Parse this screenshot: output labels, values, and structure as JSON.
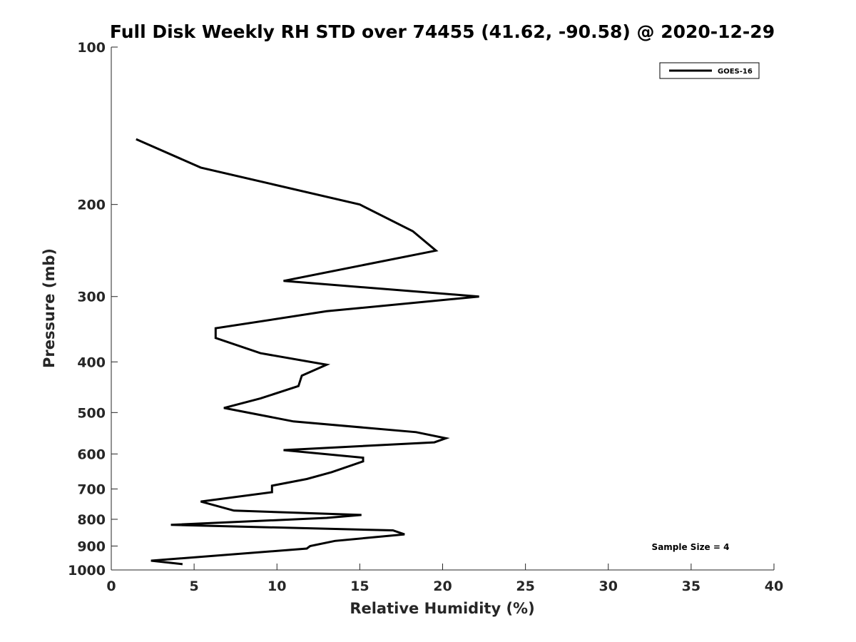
{
  "chart_data": {
    "type": "line",
    "title": "Full Disk Weekly RH STD over 74455 (41.62, -90.58) @ 2020-12-29",
    "xlabel": "Relative Humidity (%)",
    "ylabel": "Pressure (mb)",
    "xlim": [
      0,
      40
    ],
    "ylim": [
      100,
      1000
    ],
    "y_scale": "log",
    "y_reversed": true,
    "x_ticks": [
      "0",
      "5",
      "10",
      "15",
      "20",
      "25",
      "30",
      "35",
      "40"
    ],
    "y_ticks": [
      "100",
      "200",
      "300",
      "400",
      "500",
      "600",
      "700",
      "800",
      "900",
      "1000"
    ],
    "grid": false,
    "legend_position": "top-right",
    "annotation": "Sample Size = 4",
    "series": [
      {
        "name": "GOES-16",
        "color": "#000000",
        "points": [
          [
            1.5,
            150
          ],
          [
            5.4,
            170
          ],
          [
            15.0,
            200
          ],
          [
            18.2,
            225
          ],
          [
            19.6,
            245
          ],
          [
            10.4,
            280
          ],
          [
            22.2,
            300
          ],
          [
            13.0,
            320
          ],
          [
            6.3,
            345
          ],
          [
            6.3,
            360
          ],
          [
            9.0,
            385
          ],
          [
            13.0,
            405
          ],
          [
            11.5,
            425
          ],
          [
            11.3,
            445
          ],
          [
            9.0,
            470
          ],
          [
            6.8,
            490
          ],
          [
            11.0,
            520
          ],
          [
            18.4,
            545
          ],
          [
            20.2,
            560
          ],
          [
            19.5,
            570
          ],
          [
            10.4,
            590
          ],
          [
            15.2,
            610
          ],
          [
            15.2,
            620
          ],
          [
            13.3,
            650
          ],
          [
            11.8,
            670
          ],
          [
            9.7,
            690
          ],
          [
            9.7,
            710
          ],
          [
            5.4,
            740
          ],
          [
            7.4,
            770
          ],
          [
            15.1,
            785
          ],
          [
            13.0,
            795
          ],
          [
            3.6,
            820
          ],
          [
            17.0,
            840
          ],
          [
            17.7,
            855
          ],
          [
            13.5,
            880
          ],
          [
            12.0,
            900
          ],
          [
            11.8,
            910
          ],
          [
            2.4,
            960
          ],
          [
            4.3,
            975
          ]
        ]
      }
    ]
  }
}
